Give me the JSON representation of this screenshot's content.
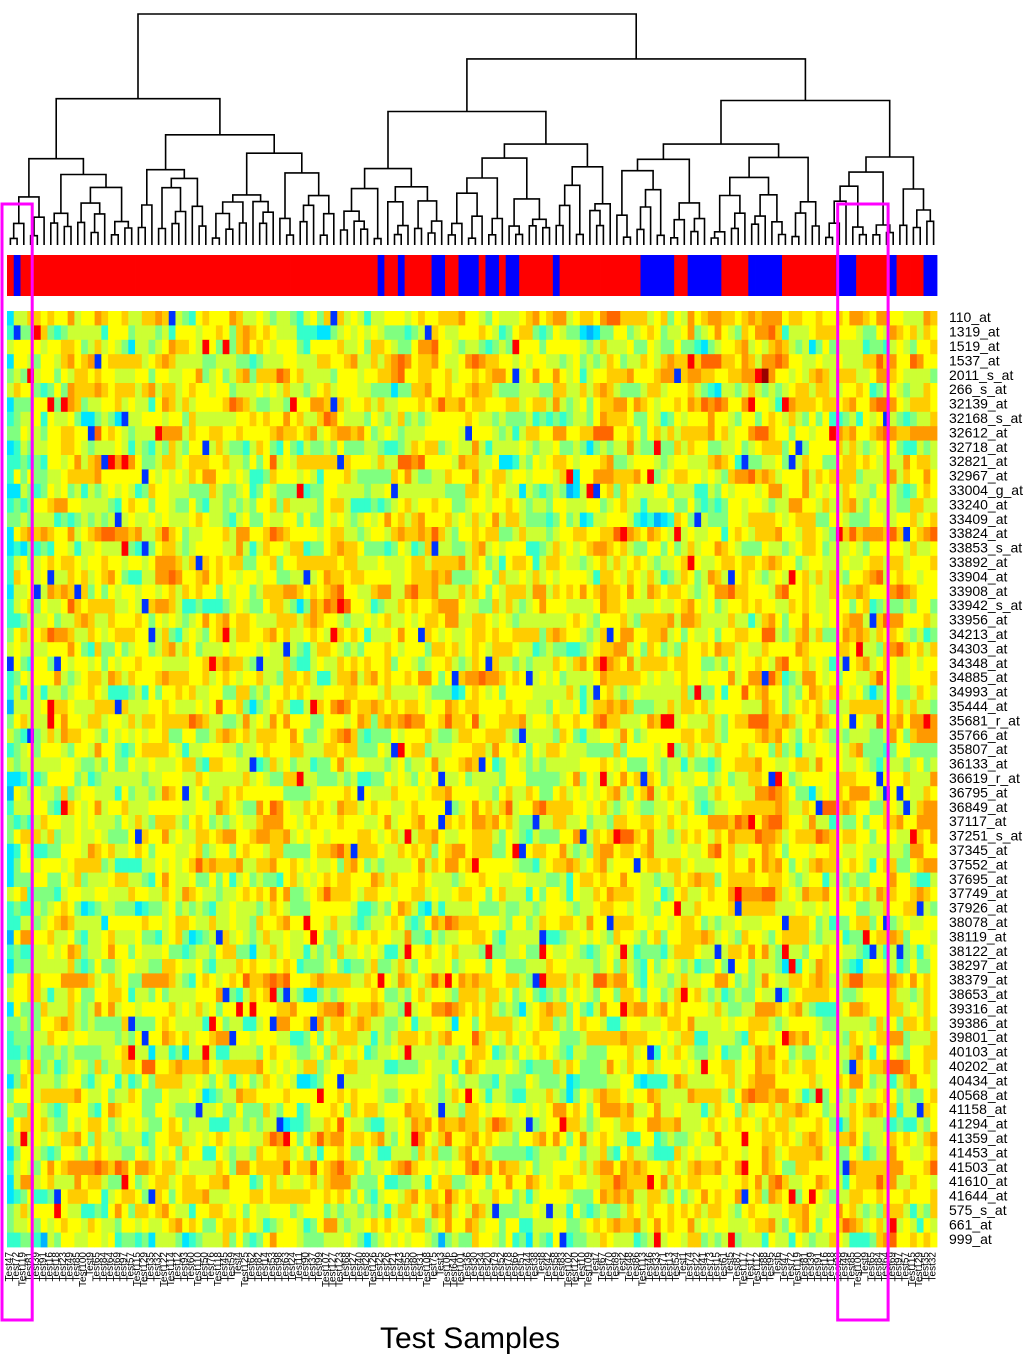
{
  "chart_data": {
    "type": "heatmap",
    "title": "",
    "xlabel": "Test Samples",
    "ylabel": "",
    "dendrogram": "top",
    "class_bar": {
      "colors": {
        "red": "#ff0000",
        "blue": "#0000ff"
      },
      "blue_indices": [
        1,
        55,
        58,
        63,
        64,
        67,
        68,
        69,
        71,
        72,
        74,
        75,
        81,
        94,
        95,
        96,
        97,
        98,
        101,
        102,
        103,
        104,
        105,
        110,
        111,
        112,
        113,
        114,
        123,
        124,
        125,
        131,
        136,
        137
      ]
    },
    "highlight": {
      "color": "#ff00ff",
      "boxes": [
        [
          0,
          3
        ],
        [
          124,
          130
        ]
      ]
    },
    "row_labels": [
      "110_at",
      "1319_at",
      "1519_at",
      "1537_at",
      "2011_s_at",
      "266_s_at",
      "32139_at",
      "32168_s_at",
      "32612_at",
      "32718_at",
      "32821_at",
      "32967_at",
      "33004_g_at",
      "33240_at",
      "33409_at",
      "33824_at",
      "33853_s_at",
      "33892_at",
      "33904_at",
      "33908_at",
      "33942_s_at",
      "33956_at",
      "34213_at",
      "34303_at",
      "34348_at",
      "34885_at",
      "34993_at",
      "35444_at",
      "35681_r_at",
      "35766_at",
      "35807_at",
      "36133_at",
      "36619_r_at",
      "36795_at",
      "36849_at",
      "37117_at",
      "37251_s_at",
      "37345_at",
      "37552_at",
      "37695_at",
      "37749_at",
      "37926_at",
      "38078_at",
      "38119_at",
      "38122_at",
      "38297_at",
      "38379_at",
      "38653_at",
      "39316_at",
      "39386_at",
      "39801_at",
      "40103_at",
      "40202_at",
      "40434_at",
      "40568_at",
      "41158_at",
      "41294_at",
      "41359_at",
      "41453_at",
      "41503_at",
      "41610_at",
      "41644_at",
      "575_s_at",
      "661_at",
      "999_at"
    ],
    "col_labels": [
      "Test47",
      "Test72",
      "Test119",
      "Test81",
      "Test39",
      "Test91",
      "Test16",
      "Test18",
      "Test23",
      "Test49",
      "Test85",
      "Test100",
      "Test9",
      "Test65",
      "Test84",
      "Test64",
      "Test69",
      "Test97",
      "Test57",
      "Test115",
      "Test129",
      "Test35",
      "Test32",
      "Test122",
      "Test114",
      "Test12",
      "Test93",
      "Test60",
      "Test110",
      "Test50",
      "Test76",
      "Test118",
      "Test45",
      "Test59",
      "Test4",
      "Test125",
      "Test62",
      "Test82",
      "Test14",
      "Test53",
      "Test98",
      "Test63",
      "Test24",
      "Test11",
      "Test90",
      "Test37",
      "Test99",
      "Test107",
      "Test127",
      "Test123",
      "Test68",
      "Test27",
      "Test40",
      "Test28",
      "Test126",
      "Test25",
      "Test26",
      "Test21",
      "Test43",
      "Test55",
      "Test80",
      "Test31",
      "Test108",
      "Test75",
      "Test3",
      "Test106",
      "Test64b",
      "Test101",
      "Test36",
      "Test30",
      "Test34",
      "Test20",
      "Test79",
      "Test52",
      "Test78",
      "Test66",
      "Test51",
      "Test44",
      "Test38",
      "Test8",
      "Test42",
      "Test58",
      "Test83",
      "Test102",
      "Test120",
      "Test10",
      "Test109",
      "Test7",
      "Test67",
      "Test70",
      "Test89",
      "Test2",
      "Test48",
      "Test86",
      "Test113",
      "Test46",
      "Test33",
      "Test71",
      "Test13",
      "Test54",
      "Test1",
      "Test74",
      "Test22",
      "Test41",
      "Test73",
      "Test15",
      "Test61",
      "Test5",
      "Test87",
      "Test117",
      "Test17",
      "Test112",
      "Test88",
      "Test95",
      "Test6"
    ],
    "col_label_rows": [
      [
        0,
        0
      ],
      [
        1,
        1
      ],
      [
        2,
        2
      ],
      [
        3,
        3
      ],
      [
        4,
        4
      ],
      [
        5,
        5
      ],
      [
        6,
        6
      ],
      [
        7,
        7
      ],
      [
        8,
        8
      ],
      [
        9,
        9
      ],
      [
        10,
        10
      ]
    ],
    "values_note": "",
    "colorscale": [
      "#0033ff",
      "#0066ff",
      "#00b3ff",
      "#00e5ff",
      "#33ffcc",
      "#80ff80",
      "#ccff33",
      "#ffff00",
      "#ffcc00",
      "#ff9900",
      "#ff6600",
      "#ff0000",
      "#990000"
    ],
    "seed": 20240517
  }
}
